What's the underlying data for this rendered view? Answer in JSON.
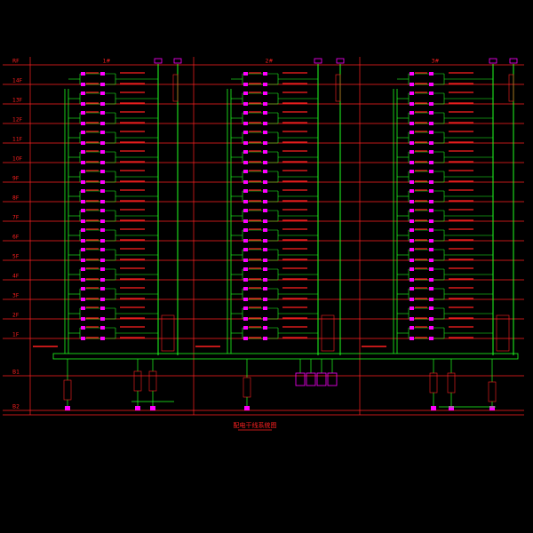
{
  "title": "配电干线系统图",
  "floors": [
    "RF",
    "14F",
    "13F",
    "12F",
    "11F",
    "10F",
    "9F",
    "8F",
    "7F",
    "6F",
    "5F",
    "4F",
    "3F",
    "2F",
    "1F"
  ],
  "basements": [
    "B1",
    "B2"
  ],
  "buildings": [
    "1#",
    "2#",
    "3#"
  ]
}
